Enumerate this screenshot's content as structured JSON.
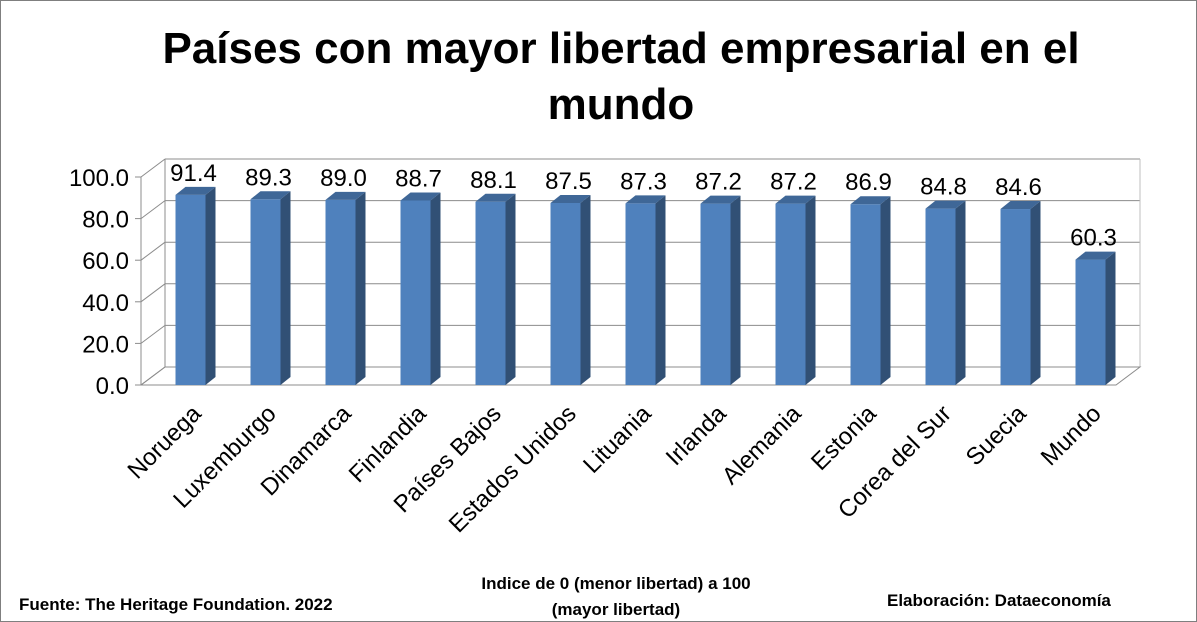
{
  "chart_data": {
    "type": "bar",
    "title": "Países con mayor libertad empresarial en el mundo",
    "categories": [
      "Noruega",
      "Luxemburgo",
      "Dinamarca",
      "Finlandia",
      "Países Bajos",
      "Estados Unidos",
      "Lituania",
      "Irlanda",
      "Alemania",
      "Estonia",
      "Corea del Sur",
      "Suecia",
      "Mundo"
    ],
    "values": [
      91.4,
      89.3,
      89.0,
      88.7,
      88.1,
      87.5,
      87.3,
      87.2,
      87.2,
      86.9,
      84.8,
      84.6,
      60.3
    ],
    "value_labels": [
      "91.4",
      "89.3",
      "89.0",
      "88.7",
      "88.1",
      "87.5",
      "87.3",
      "87.2",
      "87.2",
      "86.9",
      "84.8",
      "84.6",
      "60.3"
    ],
    "yticks": [
      "0.0",
      "20.0",
      "40.0",
      "60.0",
      "80.0",
      "100.0"
    ],
    "ylim": [
      0,
      100
    ],
    "grid": true,
    "bar_color": "#4f81bd",
    "xlabel": "",
    "ylabel": ""
  },
  "footer": {
    "source": "Fuente: The Heritage Foundation. 2022",
    "index_note": "Indice de 0 (menor libertad) a 100  (mayor libertad)",
    "credit": "Elaboración: Dataeconomía"
  }
}
